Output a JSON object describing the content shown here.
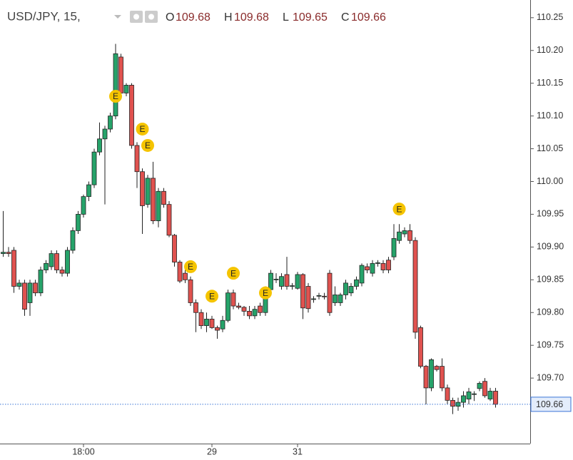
{
  "chart_data": {
    "type": "candlestick",
    "title": "USD/JPY, 15,",
    "header_ohlc": [
      {
        "label": "O",
        "value": 109.68
      },
      {
        "label": "H",
        "value": 109.68
      },
      {
        "label": "L",
        "value": 109.65
      },
      {
        "label": "C",
        "value": 109.66
      }
    ],
    "rising_color": "#26a36a",
    "falling_color": "#e0524f",
    "ylim": [
      109.6,
      110.277
    ],
    "yticks": [
      {
        "value": 110.25,
        "label": "110.25"
      },
      {
        "value": 110.2,
        "label": "110.20"
      },
      {
        "value": 110.15,
        "label": "110.15"
      },
      {
        "value": 110.1,
        "label": "110.10"
      },
      {
        "value": 110.05,
        "label": "110.05"
      },
      {
        "value": 110.0,
        "label": "110.00"
      },
      {
        "value": 109.95,
        "label": "109.95"
      },
      {
        "value": 109.9,
        "label": "109.90"
      },
      {
        "value": 109.85,
        "label": "109.85"
      },
      {
        "value": 109.8,
        "label": "109.80"
      },
      {
        "value": 109.75,
        "label": "109.75"
      },
      {
        "value": 109.7,
        "label": "109.70"
      }
    ],
    "last_price": 109.66,
    "categories": [
      null,
      null,
      null,
      null,
      null,
      null,
      null,
      null,
      null,
      null,
      null,
      null,
      null,
      null,
      null,
      "18:00",
      null,
      null,
      null,
      null,
      null,
      null,
      null,
      null,
      null,
      null,
      null,
      null,
      null,
      null,
      null,
      null,
      null,
      null,
      null,
      null,
      null,
      null,
      null,
      "29",
      null,
      null,
      null,
      null,
      null,
      null,
      null,
      null,
      null,
      null,
      null,
      null,
      null,
      null,
      null,
      "31",
      null,
      null,
      null,
      null,
      null,
      null,
      null,
      null,
      null,
      null,
      null,
      null,
      null,
      null,
      null,
      null,
      null,
      null,
      null,
      null,
      null,
      null,
      null,
      null,
      null,
      null,
      null,
      null,
      null,
      null,
      null,
      null,
      null,
      null,
      null,
      null,
      null
    ],
    "ohlc": [
      [
        109.89,
        109.955,
        109.885,
        109.892
      ],
      [
        109.892,
        109.9,
        109.885,
        109.89
      ],
      [
        109.895,
        109.9,
        109.83,
        109.84
      ],
      [
        109.84,
        109.85,
        109.835,
        109.845
      ],
      [
        109.845,
        109.85,
        109.795,
        109.805
      ],
      [
        109.815,
        109.85,
        109.795,
        109.845
      ],
      [
        109.845,
        109.85,
        109.825,
        109.83
      ],
      [
        109.83,
        109.87,
        109.825,
        109.865
      ],
      [
        109.865,
        109.88,
        109.86,
        109.875
      ],
      [
        109.87,
        109.895,
        109.865,
        109.89
      ],
      [
        109.89,
        109.895,
        109.86,
        109.865
      ],
      [
        109.865,
        109.87,
        109.855,
        109.86
      ],
      [
        109.86,
        109.9,
        109.855,
        109.895
      ],
      [
        109.895,
        109.93,
        109.89,
        109.925
      ],
      [
        109.925,
        109.955,
        109.92,
        109.95
      ],
      [
        109.95,
        109.98,
        109.945,
        109.977
      ],
      [
        109.977,
        110.0,
        109.97,
        109.995
      ],
      [
        109.995,
        110.05,
        109.99,
        110.045
      ],
      [
        110.045,
        110.09,
        110.04,
        110.065
      ],
      [
        110.065,
        110.085,
        109.965,
        110.08
      ],
      [
        110.08,
        110.105,
        110.075,
        110.1
      ],
      [
        110.1,
        110.21,
        110.095,
        110.195
      ],
      [
        110.19,
        110.195,
        110.13,
        110.135
      ],
      [
        110.135,
        110.15,
        110.13,
        110.147
      ],
      [
        110.147,
        110.15,
        110.05,
        110.055
      ],
      [
        110.055,
        110.06,
        109.99,
        110.015
      ],
      [
        110.015,
        110.02,
        109.92,
        109.963
      ],
      [
        109.965,
        110.01,
        109.96,
        110.005
      ],
      [
        110.005,
        110.03,
        109.935,
        109.94
      ],
      [
        109.94,
        109.99,
        109.93,
        109.985
      ],
      [
        109.985,
        109.99,
        109.96,
        109.965
      ],
      [
        109.965,
        109.97,
        109.915,
        109.918
      ],
      [
        109.918,
        109.92,
        109.87,
        109.877
      ],
      [
        109.877,
        109.88,
        109.845,
        109.848
      ],
      [
        109.86,
        109.865,
        109.845,
        109.85
      ],
      [
        109.85,
        109.855,
        109.81,
        109.815
      ],
      [
        109.815,
        109.82,
        109.77,
        109.8
      ],
      [
        109.8,
        109.805,
        109.775,
        109.78
      ],
      [
        109.78,
        109.8,
        109.77,
        109.79
      ],
      [
        109.79,
        109.795,
        109.775,
        109.777
      ],
      [
        109.777,
        109.78,
        109.76,
        109.773
      ],
      [
        109.775,
        109.795,
        109.77,
        109.788
      ],
      [
        109.788,
        109.835,
        109.785,
        109.83
      ],
      [
        109.83,
        109.835,
        109.805,
        109.81
      ],
      [
        109.81,
        109.815,
        109.805,
        109.808
      ],
      [
        109.808,
        109.81,
        109.795,
        109.802
      ],
      [
        109.802,
        109.81,
        109.79,
        109.795
      ],
      [
        109.795,
        109.81,
        109.79,
        109.805
      ],
      [
        109.81,
        109.815,
        109.795,
        109.8
      ],
      [
        109.8,
        109.84,
        109.795,
        109.835
      ],
      [
        109.835,
        109.865,
        109.83,
        109.86
      ],
      [
        109.85,
        109.86,
        109.845,
        109.851
      ],
      [
        109.84,
        109.86,
        109.835,
        109.855
      ],
      [
        109.858,
        109.885,
        109.835,
        109.84
      ],
      [
        109.84,
        109.845,
        109.835,
        109.841
      ],
      [
        109.837,
        109.862,
        109.835,
        109.858
      ],
      [
        109.858,
        109.86,
        109.79,
        109.807
      ],
      [
        109.84,
        109.845,
        109.8,
        109.806
      ],
      [
        109.82,
        109.825,
        109.815,
        109.821
      ],
      [
        109.825,
        109.83,
        109.82,
        109.826
      ],
      [
        109.825,
        109.83,
        109.82,
        109.824
      ],
      [
        109.86,
        109.865,
        109.795,
        109.8
      ],
      [
        109.815,
        109.84,
        109.81,
        109.827
      ],
      [
        109.815,
        109.83,
        109.81,
        109.827
      ],
      [
        109.827,
        109.85,
        109.82,
        109.845
      ],
      [
        109.83,
        109.845,
        109.825,
        109.84
      ],
      [
        109.84,
        109.855,
        109.835,
        109.85
      ],
      [
        109.845,
        109.875,
        109.84,
        109.872
      ],
      [
        109.87,
        109.875,
        109.86,
        109.865
      ],
      [
        109.86,
        109.88,
        109.855,
        109.875
      ],
      [
        109.875,
        109.88,
        109.87,
        109.876
      ],
      [
        109.875,
        109.88,
        109.86,
        109.865
      ],
      [
        109.88,
        109.885,
        109.86,
        109.865
      ],
      [
        109.885,
        109.935,
        109.88,
        109.913
      ],
      [
        109.91,
        109.935,
        109.905,
        109.923
      ],
      [
        109.92,
        109.93,
        109.915,
        109.925
      ],
      [
        109.925,
        109.935,
        109.905,
        109.91
      ],
      [
        109.91,
        109.915,
        109.76,
        109.77
      ],
      [
        109.777,
        109.78,
        109.715,
        109.718
      ],
      [
        109.718,
        109.72,
        109.66,
        109.685
      ],
      [
        109.685,
        109.73,
        109.68,
        109.728
      ],
      [
        109.718,
        109.72,
        109.71,
        109.713
      ],
      [
        109.718,
        109.73,
        109.68,
        109.685
      ],
      [
        109.685,
        109.69,
        109.66,
        109.666
      ],
      [
        109.666,
        109.67,
        109.645,
        109.657
      ],
      [
        109.657,
        109.67,
        109.65,
        109.663
      ],
      [
        109.663,
        109.68,
        109.655,
        109.673
      ],
      [
        109.668,
        109.685,
        109.66,
        109.679
      ],
      [
        109.675,
        109.68,
        109.665,
        109.676
      ],
      [
        109.684,
        109.695,
        109.68,
        109.692
      ],
      [
        109.695,
        109.7,
        109.67,
        109.673
      ],
      [
        109.668,
        109.685,
        109.665,
        109.68
      ],
      [
        109.68,
        109.685,
        109.655,
        109.66
      ]
    ],
    "events": [
      {
        "label": "E",
        "at": 21,
        "y": 110.13
      },
      {
        "label": "E",
        "at": 26,
        "y": 110.08
      },
      {
        "label": "E",
        "at": 27,
        "y": 110.055
      },
      {
        "label": "E",
        "at": 35,
        "y": 109.87
      },
      {
        "label": "E",
        "at": 39,
        "y": 109.825
      },
      {
        "label": "E",
        "at": 43,
        "y": 109.86
      },
      {
        "label": "E",
        "at": 49,
        "y": 109.83
      },
      {
        "label": "E",
        "at": 74,
        "y": 109.958
      }
    ]
  }
}
